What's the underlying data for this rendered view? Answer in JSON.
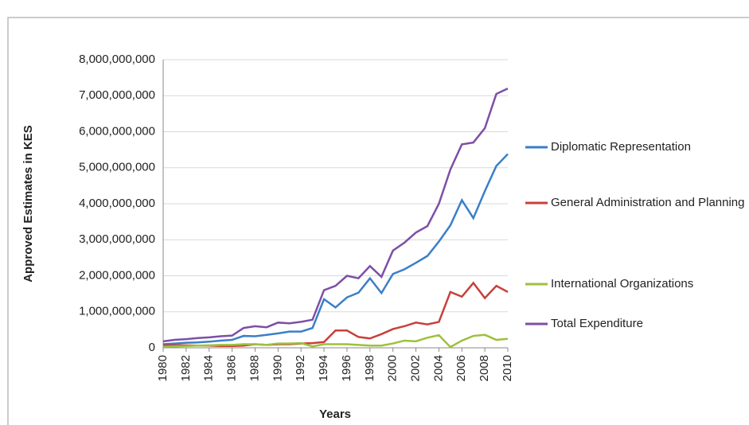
{
  "chart_data": {
    "type": "line",
    "y_label": "Approved Estimates in KES",
    "x_label": "Years",
    "x": [
      1980,
      1981,
      1982,
      1983,
      1984,
      1985,
      1986,
      1987,
      1988,
      1989,
      1990,
      1991,
      1992,
      1993,
      1994,
      1995,
      1996,
      1997,
      1998,
      1999,
      2000,
      2001,
      2002,
      2003,
      2004,
      2005,
      2006,
      2007,
      2008,
      2009,
      2010
    ],
    "xlim": [
      1980,
      2010
    ],
    "xticks": [
      1980,
      1982,
      1984,
      1986,
      1988,
      1990,
      1992,
      1994,
      1996,
      1998,
      2000,
      2002,
      2004,
      2006,
      2008,
      2010
    ],
    "ylim": [
      0,
      8000000000
    ],
    "yticks": [
      0,
      {
        "value": 1000000000,
        "label": "1,000,000,000"
      },
      {
        "value": 2000000000,
        "label": "2,000,000,000"
      },
      {
        "value": 3000000000,
        "label": "3,000,000,000"
      },
      {
        "value": 4000000000,
        "label": "4,000,000,000"
      },
      {
        "value": 5000000000,
        "label": "5,000,000,000"
      },
      {
        "value": 6000000000,
        "label": "6,000,000,000"
      },
      {
        "value": 7000000000,
        "label": "7,000,000,000"
      },
      {
        "value": 8000000000,
        "label": "8,000,000,000"
      }
    ],
    "grid": true,
    "legend": "right",
    "series": [
      {
        "name": "Diplomatic Representation",
        "color": "#3a7fc8",
        "values": [
          100000000,
          120000000,
          140000000,
          150000000,
          170000000,
          200000000,
          220000000,
          330000000,
          320000000,
          360000000,
          400000000,
          450000000,
          450000000,
          550000000,
          1350000000,
          1120000000,
          1400000000,
          1530000000,
          1930000000,
          1520000000,
          2050000000,
          2180000000,
          2360000000,
          2550000000,
          2950000000,
          3400000000,
          4100000000,
          3600000000,
          4350000000,
          5050000000,
          5380000000
        ]
      },
      {
        "name": "General Administration and Planning",
        "color": "#c8403a",
        "values": [
          70000000,
          70000000,
          70000000,
          60000000,
          60000000,
          50000000,
          50000000,
          60000000,
          100000000,
          80000000,
          100000000,
          100000000,
          120000000,
          130000000,
          160000000,
          480000000,
          480000000,
          300000000,
          260000000,
          380000000,
          520000000,
          600000000,
          700000000,
          650000000,
          720000000,
          1550000000,
          1420000000,
          1800000000,
          1380000000,
          1720000000,
          1550000000
        ]
      },
      {
        "name": "International Organizations",
        "color": "#9dc13c",
        "values": [
          30000000,
          40000000,
          50000000,
          60000000,
          70000000,
          80000000,
          80000000,
          100000000,
          100000000,
          80000000,
          120000000,
          120000000,
          130000000,
          40000000,
          100000000,
          100000000,
          100000000,
          80000000,
          60000000,
          60000000,
          120000000,
          200000000,
          180000000,
          280000000,
          350000000,
          20000000,
          200000000,
          330000000,
          360000000,
          220000000,
          250000000
        ]
      },
      {
        "name": "Total Expenditure",
        "color": "#7d4fa6",
        "values": [
          180000000,
          220000000,
          240000000,
          270000000,
          290000000,
          320000000,
          340000000,
          550000000,
          600000000,
          570000000,
          700000000,
          680000000,
          720000000,
          780000000,
          1600000000,
          1720000000,
          2000000000,
          1930000000,
          2270000000,
          1970000000,
          2700000000,
          2920000000,
          3200000000,
          3380000000,
          4000000000,
          4950000000,
          5650000000,
          5700000000,
          6100000000,
          7050000000,
          7200000000
        ]
      }
    ]
  }
}
